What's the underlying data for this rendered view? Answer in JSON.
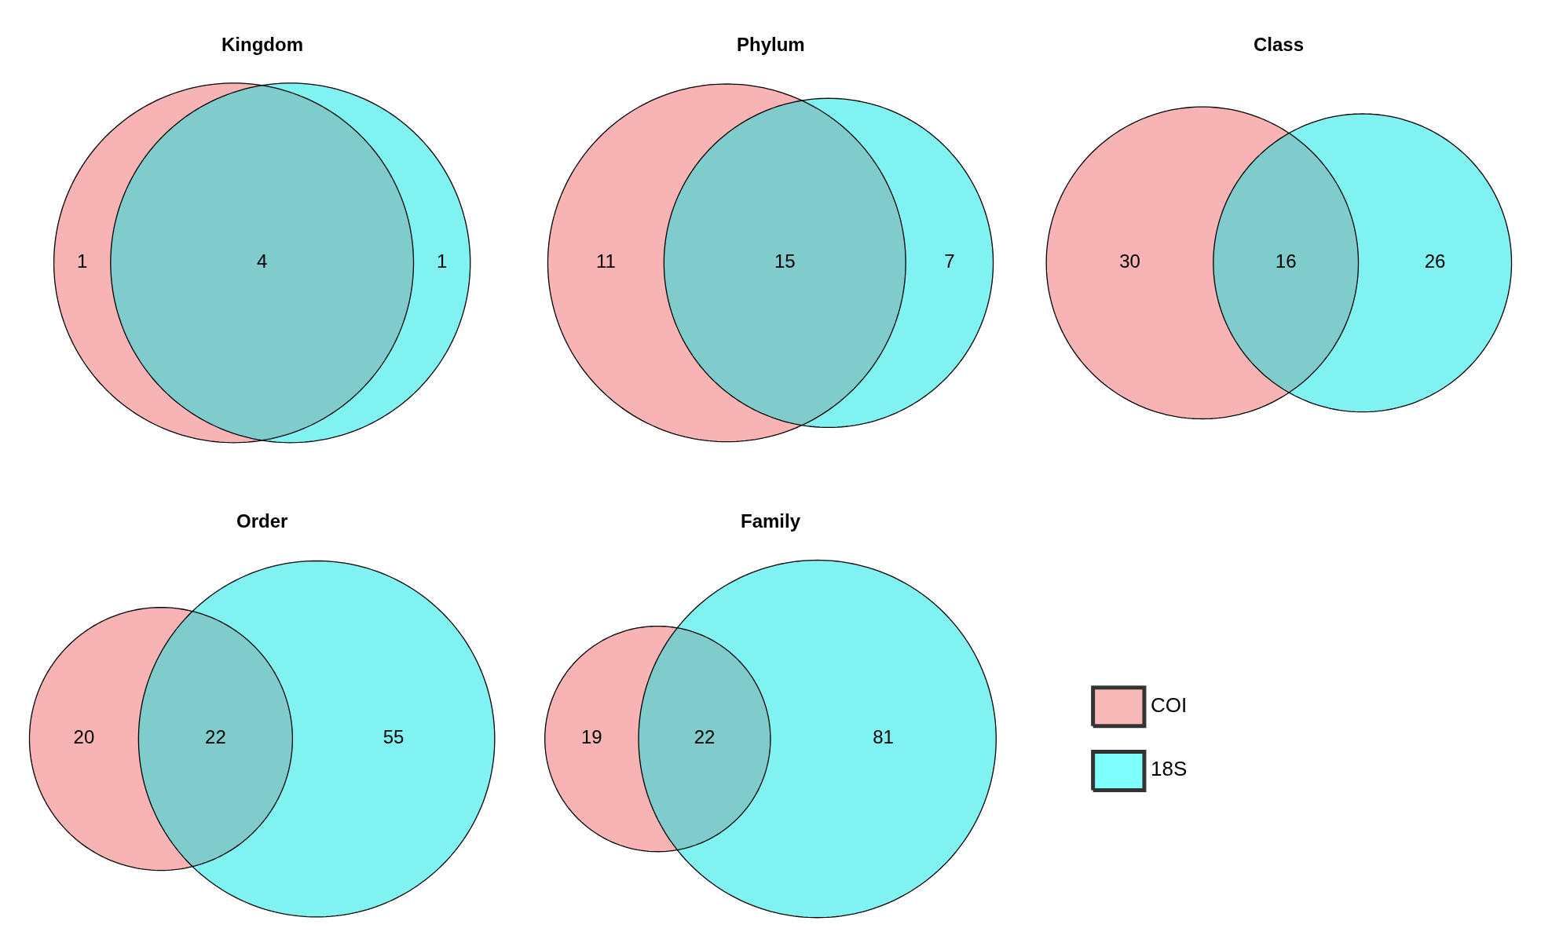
{
  "chart_data": [
    {
      "type": "other",
      "title": "Kingdom",
      "categories": [
        null,
        null,
        null
      ],
      "values": [
        1,
        4,
        1
      ],
      "data_labels": true,
      "colors": [
        "#f8b4b4",
        "#80cccc",
        "#80f2f2"
      ]
    },
    {
      "type": "other",
      "title": "Phylum",
      "categories": [
        null,
        null,
        null
      ],
      "values": [
        11,
        15,
        7
      ],
      "data_labels": true,
      "colors": [
        "#f8b4b4",
        "#80cccc",
        "#80f2f2"
      ]
    },
    {
      "type": "other",
      "title": "Class",
      "categories": [
        null,
        null,
        null
      ],
      "values": [
        30,
        16,
        26
      ],
      "data_labels": true,
      "colors": [
        "#f8b4b4",
        "#80cccc",
        "#80f2f2"
      ]
    },
    {
      "type": "other",
      "title": "Order",
      "categories": [
        null,
        null,
        null
      ],
      "values": [
        20,
        22,
        55
      ],
      "data_labels": true,
      "colors": [
        "#f8b4b4",
        "#80cccc",
        "#80f2f2"
      ]
    },
    {
      "type": "other",
      "title": "Family",
      "categories": [
        null,
        null,
        null
      ],
      "values": [
        19,
        22,
        81
      ],
      "data_labels": true,
      "colors": [
        "#f8b4b4",
        "#80cccc",
        "#80f2f2"
      ]
    },
    {
      "type": "other",
      "categories": [
        "COI",
        "18S"
      ],
      "colors": [
        "#f8b8b8",
        "#80ffff"
      ]
    }
  ]
}
